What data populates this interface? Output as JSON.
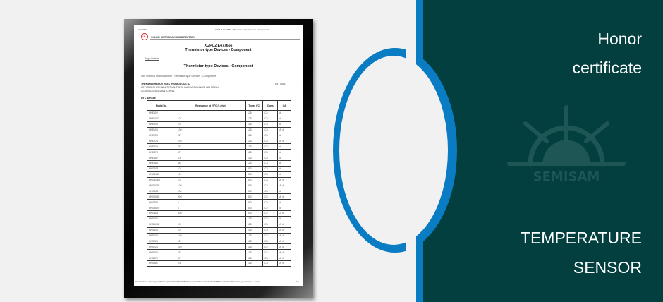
{
  "document": {
    "date": "2018/2/9",
    "tab_title": "XGPU2.E477656 - Thermistor-type Devices - Component",
    "directory": "ONLINE CERTIFICATIONS DIRECTORY",
    "code": "XGPU2.E477656",
    "title": "Thermistor-type Devices - Component",
    "page_bottom": "Page Bottom",
    "section_title": "Thermistor-type Devices - Component",
    "general_info_link": "See General Information for Thermistor-type Devices - Component",
    "company": "THERMISTOR-MOV ELECTRONICS CO LTD",
    "address1": "XINYONGSHEN INDUSTRIAL PARK, DASHA DALINGSHAN TOWN",
    "address2": "523000 DONGGUAN, CHINA",
    "file_no": "E477656",
    "ntc_label": "NTC sensor:",
    "columns": [
      "Model No.",
      "Resistance at 25°C (k ohm)",
      "T max (°C)",
      "Class",
      "CA"
    ],
    "rows": [
      [
        "HNE102",
        "1",
        "125",
        "C4",
        "#"
      ],
      [
        "HNE1032",
        "10",
        "125",
        "C4",
        "#"
      ],
      [
        "HNE103",
        "10",
        "125",
        "C3",
        "#"
      ],
      [
        "HNE104",
        "100",
        "125",
        "C3",
        "A, #"
      ],
      [
        "HNE223",
        "22",
        "125",
        "C3",
        "#"
      ],
      [
        "HNE224",
        "220",
        "125",
        "C3",
        "A, #"
      ],
      [
        "HNE333",
        "33",
        "125",
        "C3",
        "#"
      ],
      [
        "HNE473",
        "47",
        "125",
        "C3",
        "#"
      ],
      [
        "HNE682",
        "6.8",
        "125",
        "C4",
        "#"
      ],
      [
        "HNE683",
        "68",
        "125",
        "C3",
        "#"
      ],
      [
        "HNG103",
        "10",
        "300",
        "C3",
        "#"
      ],
      [
        "HNG103F",
        "10",
        "300",
        "C3",
        "#"
      ],
      [
        "HNG103H",
        "10",
        "300",
        "C4",
        "A, #"
      ],
      [
        "HNG104F",
        "100",
        "300",
        "C4",
        "A, #"
      ],
      [
        "HNG204",
        "200",
        "300",
        "C3",
        "#"
      ],
      [
        "HNG204F",
        "200",
        "300",
        "C4",
        "A, #"
      ],
      [
        "HNG502",
        "5",
        "300",
        "C3",
        "#"
      ],
      [
        "HNG502F",
        "5",
        "300",
        "C2",
        "#"
      ],
      [
        "HNG504",
        "500",
        "300",
        "C2",
        "Z, #"
      ],
      [
        "HNS102",
        "1",
        "125",
        "C3",
        "#"
      ],
      [
        "HNS1032",
        "10",
        "125",
        "C3",
        "A, #"
      ],
      [
        "HNS103",
        "10",
        "125",
        "C3",
        "A, #"
      ],
      [
        "HNS104",
        "100",
        "125",
        "C4",
        "A, #"
      ],
      [
        "HNS223",
        "22",
        "125",
        "C4",
        "A, #"
      ],
      [
        "HNS224",
        "220",
        "125",
        "C2",
        "A, #"
      ],
      [
        "HNS333",
        "33",
        "125",
        "C4",
        "A, #"
      ],
      [
        "HNS473",
        "47",
        "125",
        "C4",
        "A, #"
      ],
      [
        "HNS682",
        "6.8",
        "125",
        "C3",
        "A, #"
      ]
    ],
    "footer_url": "http://database.ul.com/cgi-bin/XYV/template/LISEXT/1FRAME/showpage.html?name=XGPU2.E477656&ccnshorttitle=Thermistor-type+Devices+-+Compo...",
    "footer_page": "1/2"
  },
  "panel": {
    "heading_line1": "Honor",
    "heading_line2": "certificate",
    "logo_text": "SEMISAM",
    "product_line1": "TEMPERATURE",
    "product_line2": "SENSOR",
    "colors": {
      "panel": "#033f3f",
      "stripe": "#0a7cc4",
      "logo": "#1e5555",
      "background": "#f1f1f1"
    }
  }
}
